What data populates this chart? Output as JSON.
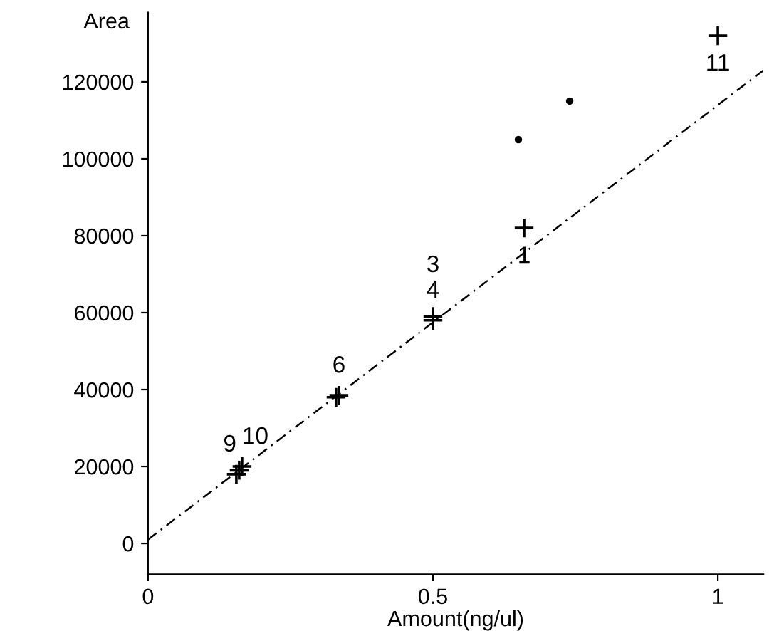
{
  "chart_data": {
    "type": "scatter",
    "xlabel": "Amount(ng/ul)",
    "ylabel": "Area",
    "series": [
      {
        "marker": "cross",
        "color": "#000000",
        "x": [
          0.155,
          0.16,
          0.165,
          0.33,
          0.335,
          0.5,
          0.5,
          0.66,
          1.0
        ],
        "values": [
          18000,
          19000,
          20000,
          38000,
          38500,
          58000,
          59000,
          82000,
          132000
        ]
      },
      {
        "marker": "circle",
        "color": "#000000",
        "x": [
          0.65,
          0.74
        ],
        "values": [
          105000,
          115000
        ]
      },
      {
        "type": "line",
        "line_style": "dashed",
        "color": "#000000",
        "x": [
          0,
          1.08
        ],
        "values": [
          1000,
          123000
        ]
      }
    ],
    "annotations": [
      {
        "text": "9",
        "x": 0.155,
        "y": 18000
      },
      {
        "text": "10",
        "x": 0.165,
        "y": 20000
      },
      {
        "text": "6",
        "x": 0.335,
        "y": 38500
      },
      {
        "text": "3",
        "x": 0.5,
        "y": 59000
      },
      {
        "text": "4",
        "x": 0.5,
        "y": 58000
      },
      {
        "text": "1",
        "x": 0.66,
        "y": 82000
      },
      {
        "text": "11",
        "x": 1.0,
        "y": 132000
      }
    ],
    "xlim": [
      0,
      1.08
    ],
    "ylim": [
      -8000,
      138000
    ],
    "xticks": [
      0,
      0.5,
      1
    ],
    "yticks": [
      0,
      20000,
      40000,
      60000,
      80000,
      100000,
      120000
    ],
    "grid": false
  }
}
